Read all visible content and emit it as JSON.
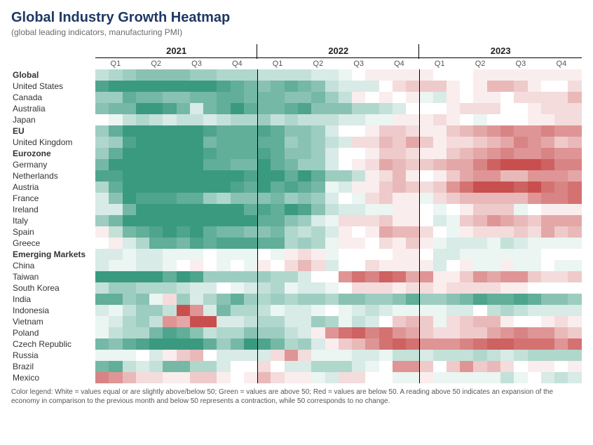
{
  "title": "Global Industry Growth Heatmap",
  "subtitle": "(global leading indicators, manufacturing PMI)",
  "legend": "Color legend: White = values equal or are slightly above/below 50; Green = values are above 50; Red = values are below 50. A reading above 50 indicates an expansion of the economy in comparison to the previous month and below 50 represents a contraction, while 50 corresponds to no change.",
  "years": [
    "2021",
    "2022",
    "2023"
  ],
  "quarters": [
    "Q1",
    "Q2",
    "Q3",
    "Q4"
  ],
  "months_per_quarter": 3,
  "color_scale": {
    "neutral": "#ffffff",
    "green_max": "#3a9a80",
    "red_max": "#c94f4f",
    "midpoint": 50,
    "green_cap": 60,
    "red_cap": 40
  },
  "rows": [
    {
      "label": "Global",
      "bold": true,
      "v": [
        53,
        54,
        55,
        56,
        56,
        56,
        56,
        55,
        55,
        54,
        54,
        54,
        53,
        53,
        53,
        53,
        52,
        52,
        51,
        50,
        49,
        49,
        49,
        49,
        49,
        50,
        50,
        50,
        49,
        49,
        49,
        49,
        49,
        49,
        49,
        49
      ]
    },
    {
      "label": "United States",
      "v": [
        59,
        60,
        61,
        61,
        62,
        62,
        60,
        61,
        61,
        59,
        58,
        57,
        56,
        57,
        58,
        57,
        56,
        53,
        52,
        52,
        52,
        50,
        48,
        47,
        47,
        47,
        49,
        50,
        49,
        46,
        46,
        47,
        49,
        50,
        50,
        48
      ]
    },
    {
      "label": "Canada",
      "v": [
        55,
        55,
        58,
        57,
        57,
        56,
        56,
        57,
        57,
        58,
        58,
        57,
        57,
        57,
        56,
        56,
        57,
        55,
        53,
        49,
        50,
        49,
        50,
        49,
        51,
        52,
        49,
        50,
        49,
        49,
        50,
        48,
        48,
        48,
        48,
        46
      ]
    },
    {
      "label": "Australia",
      "v": [
        56,
        57,
        57,
        60,
        61,
        59,
        57,
        52,
        57,
        58,
        60,
        58,
        57,
        57,
        58,
        59,
        56,
        56,
        56,
        54,
        54,
        53,
        52,
        50,
        50,
        50,
        49,
        48,
        48,
        48,
        50,
        50,
        49,
        48,
        48,
        48
      ]
    },
    {
      "label": "Japan",
      "v": [
        50,
        51,
        53,
        54,
        53,
        52,
        53,
        53,
        52,
        53,
        54,
        54,
        55,
        53,
        54,
        53,
        53,
        53,
        52,
        52,
        51,
        51,
        49,
        49,
        49,
        48,
        49,
        50,
        51,
        50,
        50,
        50,
        49,
        49,
        48,
        48
      ]
    },
    {
      "label": "EU",
      "bold": true,
      "v": [
        55,
        58,
        62,
        63,
        63,
        63,
        63,
        61,
        59,
        58,
        58,
        58,
        59,
        58,
        56,
        56,
        55,
        52,
        50,
        50,
        49,
        47,
        47,
        48,
        49,
        49,
        47,
        46,
        45,
        44,
        43,
        44,
        44,
        43,
        44,
        44
      ]
    },
    {
      "label": "United Kingdom",
      "v": [
        54,
        55,
        59,
        61,
        66,
        64,
        60,
        60,
        57,
        58,
        58,
        58,
        58,
        58,
        55,
        56,
        55,
        53,
        52,
        48,
        48,
        46,
        47,
        45,
        47,
        49,
        48,
        48,
        47,
        46,
        45,
        43,
        44,
        45,
        47,
        46
      ]
    },
    {
      "label": "Eurozone",
      "bold": true,
      "v": [
        55,
        58,
        62,
        63,
        63,
        63,
        63,
        62,
        59,
        58,
        58,
        58,
        59,
        58,
        56,
        56,
        55,
        52,
        50,
        50,
        49,
        47,
        47,
        48,
        49,
        49,
        47,
        46,
        45,
        44,
        43,
        44,
        44,
        43,
        44,
        44
      ]
    },
    {
      "label": "Germany",
      "v": [
        57,
        61,
        66,
        66,
        65,
        65,
        66,
        63,
        58,
        58,
        57,
        57,
        60,
        58,
        57,
        55,
        55,
        52,
        50,
        49,
        48,
        45,
        46,
        47,
        47,
        46,
        45,
        45,
        43,
        41,
        39,
        39,
        40,
        41,
        43,
        43
      ]
    },
    {
      "label": "Netherlands",
      "v": [
        59,
        59,
        65,
        68,
        69,
        69,
        67,
        66,
        62,
        62,
        61,
        59,
        60,
        60,
        58,
        60,
        58,
        55,
        55,
        53,
        49,
        48,
        46,
        49,
        50,
        49,
        47,
        45,
        44,
        44,
        46,
        46,
        44,
        44,
        44,
        45
      ]
    },
    {
      "label": "Austria",
      "v": [
        54,
        58,
        63,
        65,
        66,
        67,
        64,
        62,
        62,
        61,
        59,
        58,
        62,
        58,
        59,
        58,
        57,
        51,
        52,
        49,
        49,
        47,
        46,
        47,
        48,
        47,
        44,
        42,
        40,
        39,
        39,
        41,
        40,
        42,
        43,
        42
      ]
    },
    {
      "label": "France",
      "v": [
        52,
        56,
        60,
        59,
        59,
        59,
        58,
        58,
        55,
        54,
        56,
        56,
        56,
        57,
        55,
        56,
        55,
        52,
        50,
        51,
        48,
        47,
        49,
        49,
        51,
        48,
        47,
        46,
        46,
        46,
        46,
        46,
        44,
        43,
        43,
        42
      ]
    },
    {
      "label": "Ireland",
      "v": [
        52,
        52,
        57,
        61,
        64,
        64,
        64,
        63,
        60,
        62,
        60,
        58,
        59,
        58,
        60,
        59,
        56,
        53,
        52,
        52,
        51,
        51,
        49,
        49,
        50,
        51,
        50,
        49,
        47,
        47,
        47,
        51,
        50,
        49,
        49,
        49
      ]
    },
    {
      "label": "Italy",
      "v": [
        55,
        57,
        60,
        61,
        62,
        62,
        60,
        61,
        60,
        61,
        63,
        62,
        58,
        58,
        56,
        55,
        52,
        51,
        48,
        48,
        48,
        47,
        49,
        49,
        50,
        52,
        51,
        47,
        46,
        44,
        45,
        46,
        47,
        45,
        45,
        45
      ]
    },
    {
      "label": "Spain",
      "v": [
        49,
        53,
        57,
        58,
        59,
        60,
        59,
        60,
        58,
        57,
        57,
        56,
        56,
        57,
        54,
        53,
        54,
        52,
        49,
        50,
        49,
        45,
        46,
        46,
        48,
        50,
        51,
        49,
        48,
        48,
        48,
        47,
        48,
        45,
        47,
        46
      ]
    },
    {
      "label": "Greece",
      "v": [
        50,
        49,
        52,
        54,
        58,
        58,
        57,
        59,
        58,
        59,
        59,
        59,
        58,
        58,
        54,
        55,
        54,
        51,
        49,
        49,
        50,
        48,
        49,
        47,
        49,
        51,
        52,
        52,
        52,
        51,
        53,
        52,
        51,
        51,
        51,
        51
      ]
    },
    {
      "label": "Emerging Markets",
      "bold": true,
      "v": [
        52,
        52,
        51,
        52,
        52,
        51,
        51,
        51,
        50,
        51,
        51,
        51,
        50,
        51,
        49,
        48,
        49,
        51,
        50,
        50,
        50,
        50,
        49,
        49,
        50,
        52,
        52,
        51,
        51,
        51,
        51,
        51,
        51,
        50,
        50,
        50
      ]
    },
    {
      "label": "China",
      "v": [
        52,
        51,
        51,
        52,
        52,
        51,
        50,
        49,
        50,
        51,
        50,
        51,
        49,
        50,
        48,
        46,
        48,
        52,
        50,
        50,
        48,
        49,
        49,
        49,
        49,
        52,
        50,
        49,
        51,
        51,
        49,
        51,
        51,
        50,
        51,
        51
      ]
    },
    {
      "label": "Taiwan",
      "v": [
        60,
        60,
        61,
        63,
        62,
        58,
        60,
        59,
        55,
        55,
        55,
        55,
        55,
        54,
        54,
        52,
        50,
        50,
        44,
        42,
        43,
        41,
        42,
        45,
        44,
        49,
        49,
        47,
        44,
        45,
        44,
        44,
        47,
        48,
        48,
        47
      ]
    },
    {
      "label": "South Korea",
      "v": [
        53,
        55,
        55,
        54,
        54,
        54,
        53,
        52,
        52,
        50,
        51,
        52,
        53,
        54,
        51,
        52,
        52,
        51,
        50,
        48,
        48,
        48,
        49,
        48,
        48,
        49,
        48,
        48,
        48,
        48,
        49,
        49,
        50,
        50,
        50,
        50
      ]
    },
    {
      "label": "India",
      "v": [
        58,
        58,
        55,
        56,
        51,
        48,
        55,
        52,
        54,
        56,
        58,
        55,
        54,
        55,
        54,
        55,
        55,
        54,
        56,
        56,
        55,
        55,
        56,
        58,
        55,
        55,
        56,
        57,
        59,
        58,
        58,
        59,
        58,
        56,
        56,
        55
      ]
    },
    {
      "label": "Indonesia",
      "v": [
        52,
        51,
        53,
        55,
        55,
        53,
        40,
        44,
        52,
        57,
        54,
        54,
        53,
        51,
        52,
        52,
        51,
        50,
        51,
        52,
        53,
        52,
        51,
        51,
        51,
        51,
        52,
        52,
        50,
        53,
        54,
        53,
        52,
        52,
        52,
        52
      ]
    },
    {
      "label": "Vietnam",
      "v": [
        51,
        52,
        54,
        55,
        53,
        44,
        45,
        40,
        40,
        52,
        52,
        53,
        54,
        54,
        52,
        52,
        55,
        54,
        51,
        53,
        52,
        50,
        47,
        46,
        47,
        51,
        48,
        47,
        46,
        46,
        49,
        50,
        50,
        49,
        48,
        49
      ]
    },
    {
      "label": "Poland",
      "v": [
        51,
        53,
        54,
        54,
        57,
        59,
        58,
        56,
        53,
        54,
        54,
        56,
        55,
        55,
        53,
        52,
        49,
        44,
        42,
        41,
        43,
        42,
        44,
        45,
        47,
        48,
        48,
        47,
        47,
        45,
        44,
        43,
        44,
        44,
        46,
        47
      ]
    },
    {
      "label": "Czech Republic",
      "v": [
        57,
        56,
        58,
        59,
        62,
        62,
        62,
        61,
        58,
        55,
        57,
        60,
        59,
        57,
        54,
        55,
        52,
        49,
        47,
        46,
        44,
        42,
        41,
        42,
        44,
        44,
        44,
        43,
        42,
        41,
        41,
        42,
        42,
        42,
        44,
        42
      ]
    },
    {
      "label": "Russia",
      "v": [
        51,
        51,
        51,
        50,
        52,
        49,
        47,
        46,
        50,
        52,
        52,
        52,
        52,
        48,
        44,
        48,
        51,
        51,
        51,
        52,
        52,
        51,
        53,
        53,
        52,
        53,
        53,
        53,
        54,
        53,
        52,
        53,
        54,
        54,
        54,
        54
      ]
    },
    {
      "label": "Brazil",
      "v": [
        57,
        58,
        53,
        52,
        53,
        57,
        57,
        54,
        54,
        52,
        50,
        50,
        48,
        50,
        52,
        52,
        54,
        54,
        54,
        52,
        51,
        50,
        44,
        44,
        47,
        50,
        47,
        44,
        47,
        46,
        48,
        50,
        49,
        49,
        50,
        49
      ]
    },
    {
      "label": "Mexico",
      "v": [
        43,
        44,
        46,
        48,
        48,
        49,
        49,
        47,
        47,
        49,
        50,
        49,
        46,
        48,
        49,
        49,
        51,
        52,
        48,
        48,
        50,
        50,
        51,
        51,
        49,
        51,
        51,
        51,
        51,
        51,
        53,
        51,
        50,
        52,
        53,
        52
      ]
    }
  ]
}
